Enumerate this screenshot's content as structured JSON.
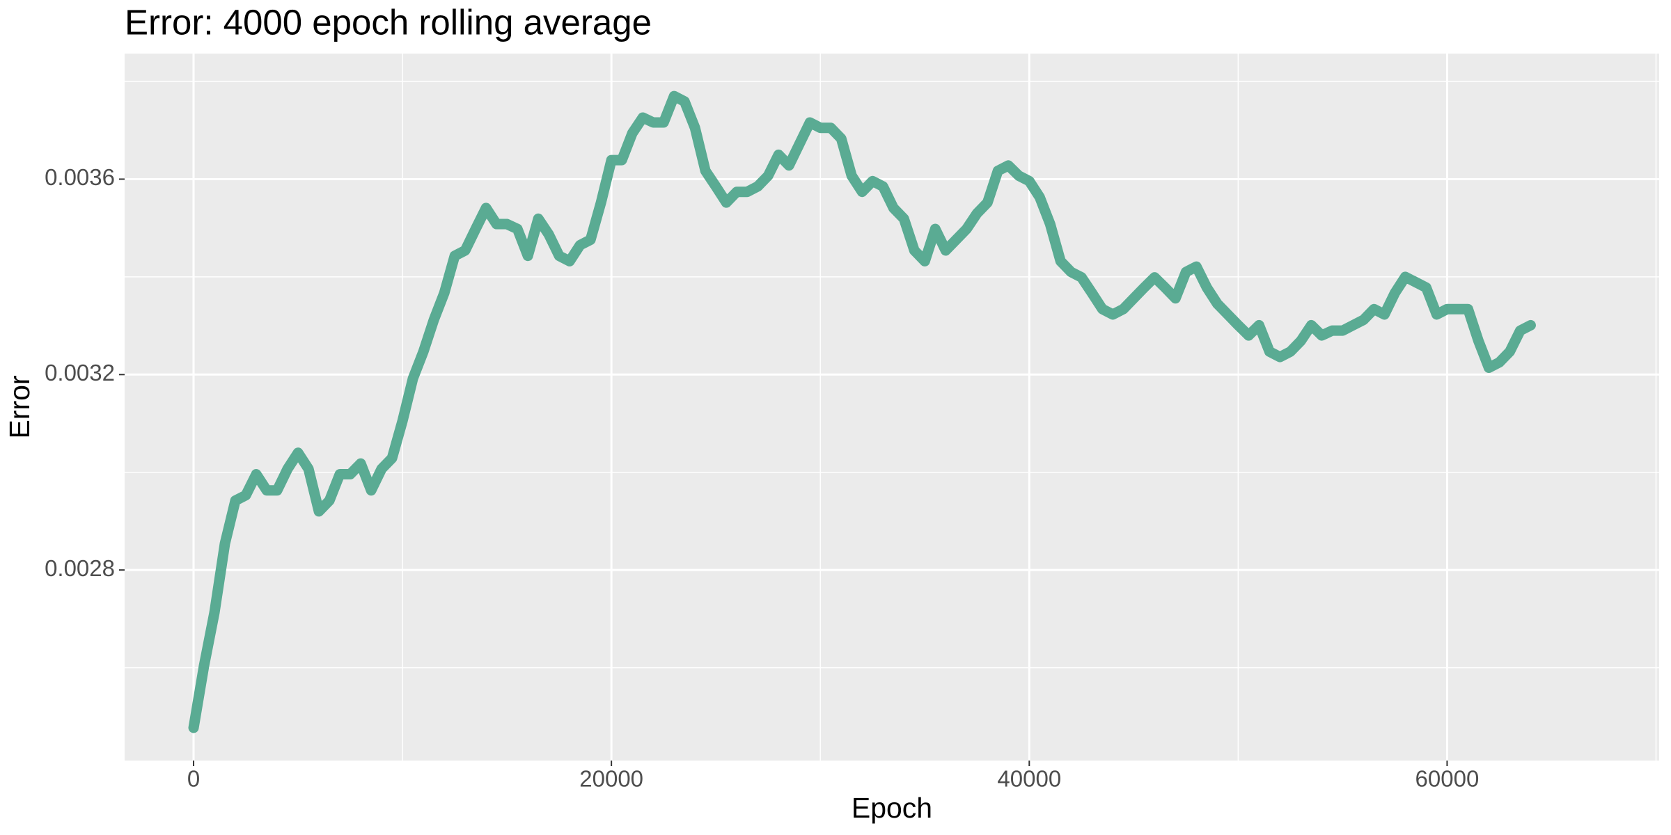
{
  "chart_data": {
    "type": "line",
    "title": "Error: 4000 epoch rolling average",
    "x_label": "Epoch",
    "y_label": "Error",
    "x": [
      0,
      500,
      1000,
      1500,
      2000,
      2500,
      3000,
      3500,
      4000,
      4500,
      5000,
      5500,
      6000,
      6500,
      7000,
      7500,
      8000,
      8500,
      9000,
      9500,
      10000,
      10500,
      11000,
      11500,
      12000,
      12500,
      13000,
      13500,
      14000,
      14500,
      15000,
      15500,
      16000,
      16500,
      17000,
      17500,
      18000,
      18500,
      19000,
      19500,
      20000,
      20500,
      21000,
      21500,
      22000,
      22500,
      23000,
      23500,
      24000,
      24500,
      25000,
      25500,
      26000,
      26500,
      27000,
      27500,
      28000,
      28500,
      29000,
      29500,
      30000,
      30500,
      31000,
      31500,
      32000,
      32500,
      33000,
      33500,
      34000,
      34500,
      35000,
      35500,
      36000,
      36500,
      37000,
      37500,
      38000,
      38500,
      39000,
      39500,
      40000,
      40500,
      41000,
      41500,
      42000,
      42500,
      43000,
      43500,
      44000,
      44500,
      45000,
      45500,
      46000,
      46500,
      47000,
      47500,
      48000,
      48500,
      49000,
      49500,
      50000,
      50500,
      51000,
      51500,
      52000,
      52500,
      53000,
      53500,
      54000,
      54500,
      55000,
      55500,
      56000,
      56500,
      57000,
      57500,
      58000,
      58500,
      59000,
      59500,
      60000,
      60500,
      61000,
      61500,
      62000,
      62500,
      63000,
      63500,
      64000
    ],
    "values": [
      0.002477,
      0.002604,
      0.002713,
      0.002854,
      0.002942,
      0.002953,
      0.002996,
      0.002963,
      0.002963,
      0.003007,
      0.00304,
      0.003007,
      0.00292,
      0.002942,
      0.002996,
      0.002996,
      0.003018,
      0.002963,
      0.003007,
      0.003029,
      0.003105,
      0.003192,
      0.003247,
      0.003312,
      0.003367,
      0.003443,
      0.003454,
      0.003498,
      0.003541,
      0.003508,
      0.003508,
      0.003498,
      0.003443,
      0.003519,
      0.003487,
      0.003443,
      0.003432,
      0.003465,
      0.003476,
      0.003552,
      0.003639,
      0.003639,
      0.003694,
      0.003726,
      0.003716,
      0.003716,
      0.00377,
      0.003759,
      0.003705,
      0.003617,
      0.003585,
      0.003552,
      0.003574,
      0.003574,
      0.003585,
      0.003607,
      0.00365,
      0.003628,
      0.003672,
      0.003716,
      0.003705,
      0.003705,
      0.003683,
      0.003607,
      0.003574,
      0.003596,
      0.003585,
      0.003541,
      0.003519,
      0.003454,
      0.003432,
      0.003498,
      0.003454,
      0.003476,
      0.003498,
      0.00353,
      0.003552,
      0.003617,
      0.003628,
      0.003607,
      0.003596,
      0.003563,
      0.003508,
      0.003432,
      0.00341,
      0.003399,
      0.003367,
      0.003334,
      0.003323,
      0.003334,
      0.003356,
      0.003378,
      0.003399,
      0.003378,
      0.003356,
      0.00341,
      0.003421,
      0.003378,
      0.003345,
      0.003323,
      0.003301,
      0.00328,
      0.003301,
      0.003247,
      0.003236,
      0.003247,
      0.003269,
      0.003301,
      0.00328,
      0.00329,
      0.00329,
      0.003301,
      0.003312,
      0.003334,
      0.003323,
      0.003367,
      0.0034,
      0.003389,
      0.003378,
      0.003323,
      0.003334,
      0.003334,
      0.003334,
      0.003269,
      0.003214,
      0.003225,
      0.003247,
      0.00329,
      0.003301
    ],
    "color": "#5aab93",
    "xlim": [
      -3300,
      70150
    ],
    "xticks": [
      0,
      20000,
      40000,
      60000
    ],
    "ylim": [
      0.00241,
      0.003857
    ],
    "yticks": [
      0.0028,
      0.0032,
      0.0036
    ],
    "x_minor_ticks": [
      10000,
      30000,
      50000,
      70000
    ],
    "y_minor_ticks": [
      0.0026,
      0.003,
      0.0034,
      0.0038
    ],
    "grid": true
  }
}
